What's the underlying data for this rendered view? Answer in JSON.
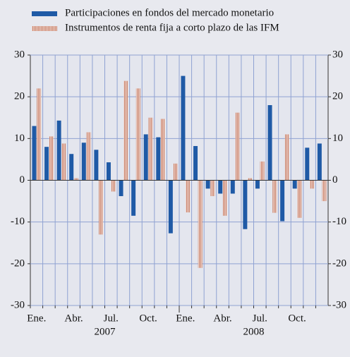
{
  "chart_data": {
    "type": "bar",
    "categories": [
      "Ene.",
      null,
      null,
      "Abr.",
      null,
      null,
      "Jul.",
      null,
      null,
      "Oct.",
      null,
      null,
      "Ene.",
      null,
      null,
      "Abr.",
      null,
      null,
      "Jul.",
      null,
      null,
      "Oct.",
      null,
      null
    ],
    "year_labels": [
      "2007",
      "2008"
    ],
    "series": [
      {
        "name": "Participaciones en fondos del mercado monetario",
        "color": "#1f5aa6",
        "values": [
          13,
          8,
          14.3,
          6.3,
          9,
          7.3,
          4.3,
          -3.8,
          -8.5,
          11,
          10.3,
          -12.7,
          25,
          8.2,
          -2,
          -3.2,
          -3.2,
          -11.7,
          -2,
          18,
          -9.8,
          -2,
          7.8,
          8.8
        ]
      },
      {
        "name": "Instrumentos de renta fija a corto plazo de las IFM",
        "color": "#c9836c",
        "values": [
          22,
          10.5,
          8.8,
          0.5,
          11.5,
          -13,
          -2.7,
          23.8,
          22,
          15,
          14.7,
          4,
          -7.7,
          -21,
          -3.8,
          -8.5,
          16.2,
          0.5,
          4.5,
          -7.8,
          11,
          -9,
          -2,
          -5
        ]
      }
    ],
    "ylim": [
      -30,
      30
    ],
    "yticks": [
      -30,
      -20,
      -10,
      0,
      10,
      20,
      30
    ],
    "grid": true
  }
}
